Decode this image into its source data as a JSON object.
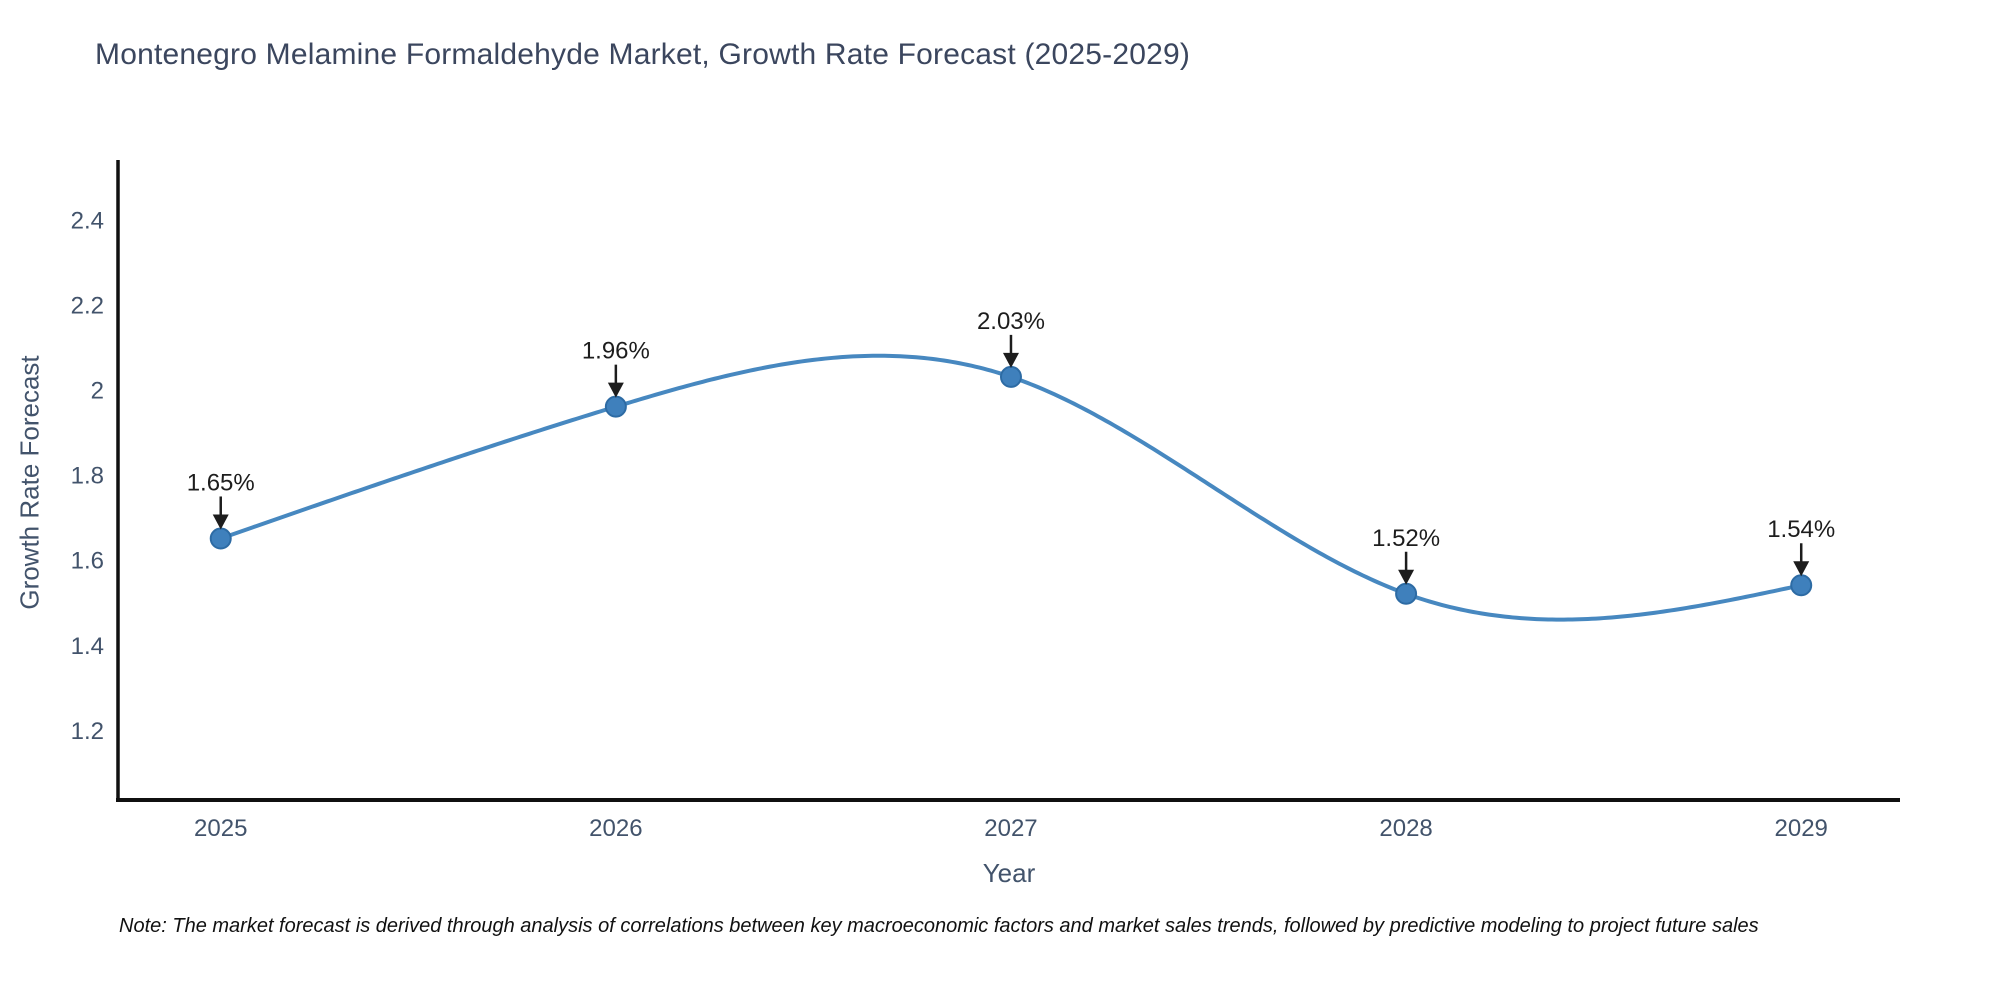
{
  "chart_data": {
    "type": "line",
    "title": "Montenegro Melamine Formaldehyde Market, Growth Rate Forecast (2025-2029)",
    "xlabel": "Year",
    "ylabel": "Growth Rate Forecast",
    "x": [
      2025,
      2026,
      2027,
      2028,
      2029
    ],
    "values": [
      1.65,
      1.96,
      2.03,
      1.52,
      1.54
    ],
    "point_labels": [
      "1.65%",
      "1.96%",
      "2.03%",
      "1.52%",
      "1.54%"
    ],
    "xtick_labels": [
      "2025",
      "2026",
      "2027",
      "2028",
      "2029"
    ],
    "yticks": [
      1.2,
      1.4,
      1.6,
      1.8,
      2,
      2.2,
      2.4
    ],
    "ytick_labels": [
      "1.2",
      "1.4",
      "1.6",
      "1.8",
      "2",
      "2.2",
      "2.4"
    ],
    "xlim": [
      2024.74,
      2029.25
    ],
    "ylim": [
      1.035,
      2.54
    ],
    "line_shape": "spline",
    "grid": false,
    "legend": "none",
    "line_color": "#4788c0",
    "marker_color": "#3f80bc",
    "marker_edge_color": "#2d6ba4",
    "axis_color": "#101010",
    "annotation_color": "#1d1d1d",
    "tick_color": "#42536b"
  },
  "footnote": "Note: The market forecast is derived through analysis of correlations between key macroeconomic factors and market sales trends, followed by predictive modeling to project future sales"
}
